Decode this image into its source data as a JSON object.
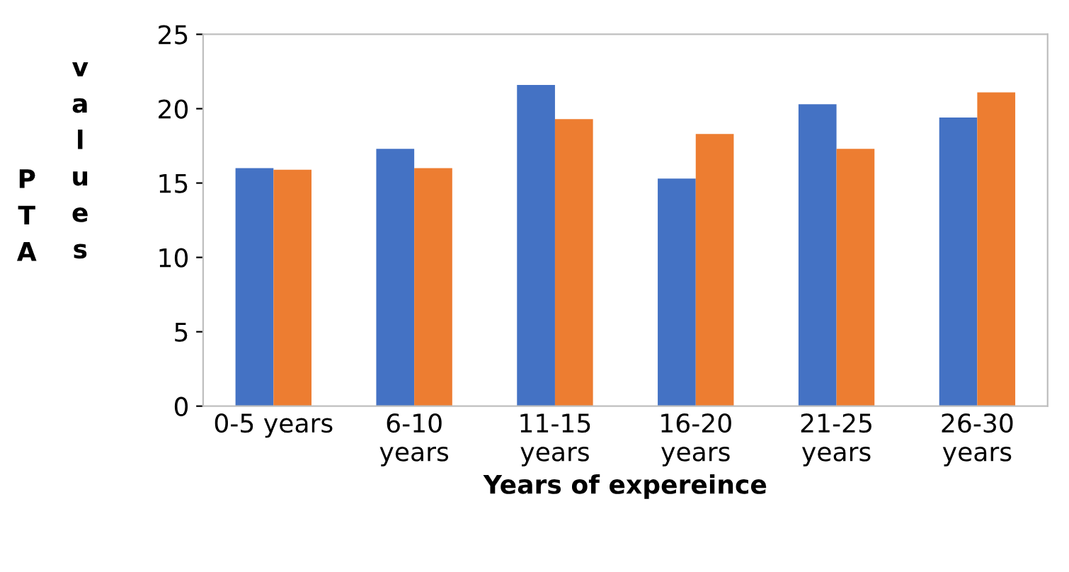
{
  "chart_data": {
    "type": "bar",
    "xlabel": "Years of expereince",
    "ylabel": "PTA values",
    "categories": [
      "0-5 years",
      "6-10\nyears",
      "11-15\nyears",
      "16-20\nyears",
      "21-25\nyears",
      "26-30\nyears"
    ],
    "series": [
      {
        "color": "#4472c4",
        "values": [
          16.0,
          17.3,
          21.6,
          15.3,
          20.3,
          19.4
        ]
      },
      {
        "color": "#ed7d31",
        "values": [
          15.9,
          16.0,
          19.3,
          18.3,
          17.3,
          21.1
        ]
      }
    ],
    "ylim": [
      0,
      25
    ],
    "yticks": [
      0,
      5,
      10,
      15,
      20,
      25
    ],
    "grid": false,
    "legend": false
  }
}
